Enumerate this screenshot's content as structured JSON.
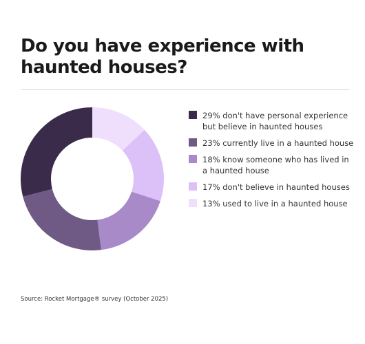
{
  "chart_data": {
    "type": "donut",
    "title": "Do you have experience with haunted houses?",
    "categories": [
      "don't have personal experience but believe in haunted houses",
      "currently live in a haunted house",
      "know someone who has lived in a haunted house",
      "don't believe in haunted houses",
      "used to live in a haunted house"
    ],
    "values": [
      29,
      23,
      18,
      17,
      13
    ],
    "value_labels": [
      "29%",
      "23%",
      "18%",
      "17%",
      "13%"
    ],
    "colors": [
      "#3b2b4b",
      "#6f5a86",
      "#a98ac9",
      "#dcc1f8",
      "#efdefc"
    ],
    "source": "Source: Rocket Mortgage® survey (October 2025)"
  }
}
